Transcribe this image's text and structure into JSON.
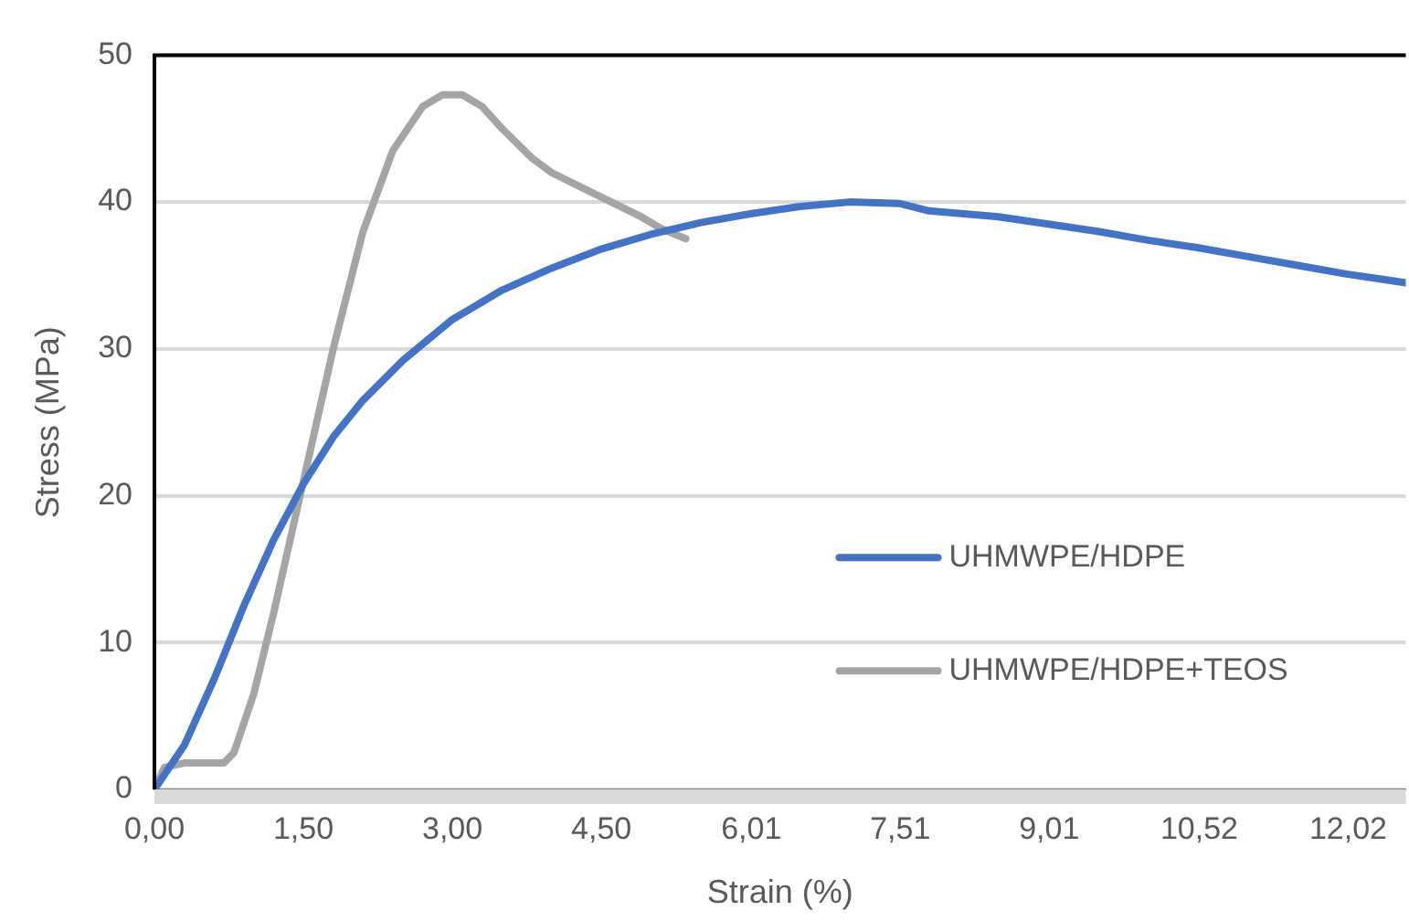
{
  "chart_data": {
    "type": "line",
    "xlabel": "Strain (%)",
    "ylabel": "Stress (MPa)",
    "xlim": [
      0,
      12.6
    ],
    "ylim": [
      0,
      50
    ],
    "xticks": [
      {
        "value": 0,
        "label": "0,00"
      },
      {
        "value": 1.5,
        "label": "1,50"
      },
      {
        "value": 3.0,
        "label": "3,00"
      },
      {
        "value": 4.5,
        "label": "4,50"
      },
      {
        "value": 6.01,
        "label": "6,01"
      },
      {
        "value": 7.51,
        "label": "7,51"
      },
      {
        "value": 9.01,
        "label": "9,01"
      },
      {
        "value": 10.52,
        "label": "10,52"
      },
      {
        "value": 12.02,
        "label": "12,02"
      }
    ],
    "yticks": [
      0,
      10,
      20,
      30,
      40,
      50
    ],
    "grid": "y",
    "legend": "right",
    "marker": "none",
    "line_style": "solid",
    "series": [
      {
        "name": "UHMWPE/HDPE",
        "color": "#4472c4",
        "x": [
          0,
          0.3,
          0.6,
          0.9,
          1.2,
          1.5,
          1.8,
          2.1,
          2.5,
          3.0,
          3.5,
          4.0,
          4.5,
          5.0,
          5.5,
          6.0,
          6.5,
          7.0,
          7.5,
          7.8,
          8.5,
          9.0,
          9.5,
          10.0,
          10.5,
          11.0,
          11.5,
          12.0,
          12.6
        ],
        "values": [
          0,
          3,
          7.5,
          12.5,
          17,
          20.8,
          24,
          26.5,
          29.2,
          32,
          34,
          35.5,
          36.8,
          37.8,
          38.6,
          39.2,
          39.7,
          40,
          39.9,
          39.4,
          39,
          38.5,
          38,
          37.4,
          36.9,
          36.3,
          35.7,
          35.1,
          34.5
        ]
      },
      {
        "name": "UHMWPE/HDPE+TEOS",
        "color": "#a5a5a5",
        "x": [
          0,
          0.1,
          0.3,
          0.7,
          0.8,
          1.0,
          1.2,
          1.5,
          1.8,
          2.1,
          2.4,
          2.7,
          2.9,
          3.1,
          3.3,
          3.5,
          3.8,
          4.0,
          4.3,
          4.6,
          4.9,
          5.1,
          5.35
        ],
        "values": [
          0,
          1.5,
          1.8,
          1.8,
          2.5,
          6.5,
          12,
          21,
          30,
          38,
          43.5,
          46.5,
          47.3,
          47.3,
          46.5,
          45,
          43,
          42,
          41,
          40,
          39,
          38.2,
          37.5
        ]
      }
    ]
  }
}
